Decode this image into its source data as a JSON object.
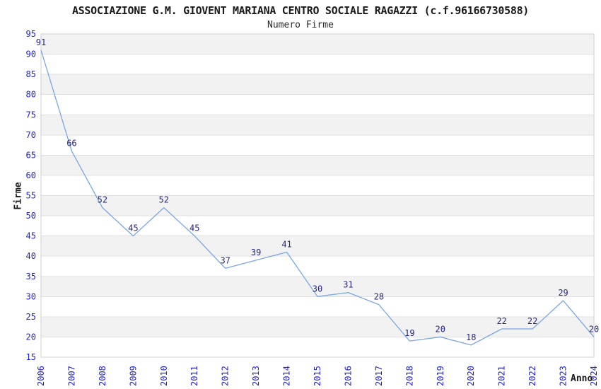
{
  "chart_data": {
    "type": "line",
    "title": "ASSOCIAZIONE G.M. GIOVENT MARIANA CENTRO SOCIALE RAGAZZI (c.f.96166730588)",
    "subtitle": "Numero Firme",
    "xlabel": "Anno",
    "ylabel": "Firme",
    "categories": [
      "2006",
      "2007",
      "2008",
      "2009",
      "2010",
      "2011",
      "2012",
      "2013",
      "2014",
      "2015",
      "2016",
      "2017",
      "2018",
      "2019",
      "2020",
      "2021",
      "2022",
      "2023",
      "2024"
    ],
    "values": [
      91,
      66,
      52,
      45,
      52,
      45,
      37,
      39,
      41,
      30,
      31,
      28,
      19,
      20,
      18,
      22,
      22,
      29,
      20
    ],
    "ylim": [
      15,
      95
    ],
    "ytick_step": 5,
    "grid": true,
    "band_fill": "alternating-horizontal",
    "legend": "none",
    "data_labels": "shown-above-points",
    "colors": {
      "line": "#7aa6e4",
      "tick_label": "#2323cd",
      "data_label": "#28287e",
      "band": "#f2f2f2",
      "grid": "#e0e0e0",
      "border": "#d0d0d0",
      "axis_title": "#1a1a1a",
      "background": "#ffffff"
    }
  }
}
